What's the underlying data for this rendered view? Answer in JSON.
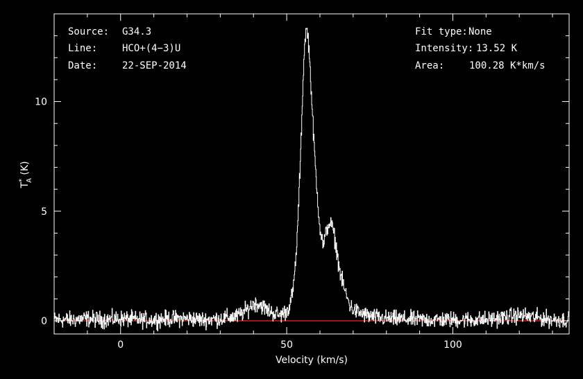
{
  "annotations": {
    "source_label": "Source:",
    "source_value": "G34.3",
    "line_label": "Line:",
    "line_value": "HCO+(4−3)U",
    "date_label": "Date:",
    "date_value": "22-SEP-2014",
    "fit_label": "Fit type:",
    "fit_value": "None",
    "intensity_label": "Intensity:",
    "intensity_value": "13.52 K",
    "area_label": "Area:",
    "area_value": "100.28 K*km/s"
  },
  "colors": {
    "background": "#000000",
    "axes": "#ffffff",
    "spectrum": "#ffffff",
    "baseline": "#ff2020"
  },
  "chart_data": {
    "type": "line",
    "xlabel": "Velocity (km/s)",
    "ylabel_main": "T",
    "ylabel_super": "*",
    "ylabel_sub": "A",
    "ylabel_unit": " (K)",
    "xlim": [
      -20,
      135
    ],
    "ylim": [
      -0.6,
      14.0
    ],
    "xticks": [
      0,
      50,
      100
    ],
    "xtick_labels": [
      "0",
      "50",
      "100"
    ],
    "yticks": [
      0,
      5,
      10
    ],
    "ytick_labels": [
      "0",
      "5",
      "10"
    ],
    "baseline_y": 0,
    "series": [
      {
        "x": [
          -20,
          -15,
          -10,
          -5,
          0,
          5,
          10,
          15,
          20,
          25,
          30,
          35,
          38,
          40,
          42,
          44,
          46,
          48,
          50,
          51,
          52,
          53,
          54,
          55,
          55.5,
          56,
          56.5,
          57,
          58,
          59,
          60,
          61,
          62,
          63,
          64,
          65,
          66,
          67,
          68,
          69,
          70,
          72,
          75,
          80,
          90,
          100,
          110,
          120,
          125,
          130,
          135
        ],
        "y": [
          0.05,
          0.05,
          0.1,
          0.05,
          0.1,
          0.05,
          0.05,
          0.1,
          0.1,
          0.05,
          0.1,
          0.2,
          0.5,
          0.8,
          0.75,
          0.5,
          0.35,
          0.25,
          0.45,
          0.8,
          1.5,
          3.5,
          7.0,
          11.5,
          13.0,
          13.3,
          12.8,
          11.5,
          8.5,
          6.0,
          4.2,
          3.4,
          4.2,
          4.5,
          4.1,
          3.2,
          2.2,
          1.6,
          1.1,
          0.7,
          0.5,
          0.35,
          0.2,
          0.1,
          0.05,
          0.05,
          0.05,
          0.25,
          0.15,
          0.05,
          0.05
        ]
      }
    ]
  }
}
